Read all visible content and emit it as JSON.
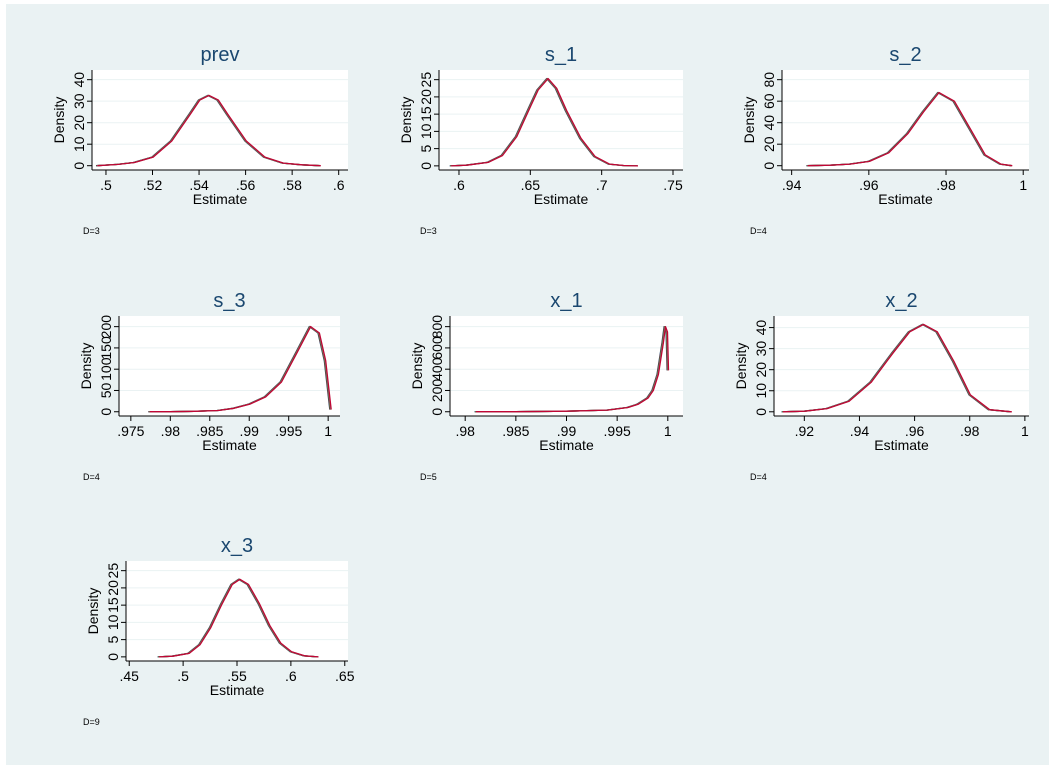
{
  "figure": {
    "background": "#eaf2f3",
    "plot_background": "#ffffff",
    "title_color": "#1a476f",
    "grid_color": "#eaf2f3",
    "axis_color": "#000000"
  },
  "chart_data": [
    {
      "type": "line",
      "title": "prev",
      "xlabel": "Estimate",
      "ylabel": "Density",
      "note": "D=3",
      "xticks": [
        ".5",
        ".52",
        ".54",
        ".56",
        ".58",
        ".6"
      ],
      "xtick_values": [
        0.5,
        0.52,
        0.54,
        0.56,
        0.58,
        0.6
      ],
      "yticks": [
        "0",
        "10",
        "20",
        "30",
        "40"
      ],
      "ytick_values": [
        0,
        10,
        20,
        30,
        40
      ],
      "xlim": [
        0.494,
        0.604
      ],
      "ylim": [
        -2.0,
        44.5
      ],
      "grid": true,
      "legend": "none",
      "colors": [
        "#1a476f",
        "#90353b",
        "#55752f",
        "#6e8e84",
        "#c10534"
      ],
      "x": [
        0.496,
        0.505,
        0.512,
        0.52,
        0.528,
        0.536,
        0.54,
        0.544,
        0.548,
        0.552,
        0.56,
        0.568,
        0.576,
        0.584,
        0.592
      ],
      "y": [
        0,
        0.6,
        1.5,
        4,
        11.5,
        24,
        30.5,
        32.7,
        30.5,
        24,
        11.5,
        4,
        1.2,
        0.4,
        0
      ]
    },
    {
      "type": "line",
      "title": "s_1",
      "xlabel": "Estimate",
      "ylabel": "Density",
      "note": "D=3",
      "xticks": [
        ".6",
        ".65",
        ".7",
        ".75"
      ],
      "xtick_values": [
        0.6,
        0.65,
        0.7,
        0.75
      ],
      "yticks": [
        "0",
        "5",
        "10",
        "15",
        "20",
        "25"
      ],
      "ytick_values": [
        0,
        5,
        10,
        15,
        20,
        25
      ],
      "xlim": [
        0.586,
        0.757
      ],
      "ylim": [
        -1.2,
        27.8
      ],
      "grid": true,
      "legend": "none",
      "colors": [
        "#1a476f",
        "#90353b",
        "#55752f",
        "#6e8e84",
        "#c10534"
      ],
      "x": [
        0.594,
        0.605,
        0.62,
        0.63,
        0.64,
        0.65,
        0.655,
        0.662,
        0.668,
        0.675,
        0.685,
        0.695,
        0.705,
        0.715,
        0.725
      ],
      "y": [
        0,
        0.2,
        1,
        3,
        8.5,
        17.5,
        22,
        25.3,
        22.5,
        16,
        8,
        2.7,
        0.5,
        0.1,
        0
      ]
    },
    {
      "type": "line",
      "title": "s_2",
      "xlabel": "Estimate",
      "ylabel": "Density",
      "note": "D=4",
      "xticks": [
        ".94",
        ".96",
        ".98",
        "1"
      ],
      "xtick_values": [
        0.94,
        0.96,
        0.98,
        1.0
      ],
      "yticks": [
        "0",
        "20",
        "40",
        "60",
        "80"
      ],
      "ytick_values": [
        0,
        20,
        40,
        60,
        80
      ],
      "xlim": [
        0.9375,
        1.0015
      ],
      "ylim": [
        -4.0,
        89.0
      ],
      "grid": true,
      "legend": "none",
      "colors": [
        "#1a476f",
        "#90353b",
        "#55752f",
        "#6e8e84",
        "#c10534"
      ],
      "x": [
        0.944,
        0.95,
        0.955,
        0.96,
        0.965,
        0.97,
        0.974,
        0.978,
        0.982,
        0.986,
        0.99,
        0.994,
        0.997
      ],
      "y": [
        0,
        0.5,
        1.5,
        4,
        12,
        30,
        50,
        68,
        60,
        35,
        10,
        1.5,
        0
      ]
    },
    {
      "type": "line",
      "title": "s_3",
      "xlabel": "Estimate",
      "ylabel": "Density",
      "note": "D=4",
      "xticks": [
        ".975",
        ".98",
        ".985",
        ".99",
        ".995",
        "1"
      ],
      "xtick_values": [
        0.975,
        0.98,
        0.985,
        0.99,
        0.995,
        1.0
      ],
      "yticks": [
        "0",
        "50",
        "100",
        "150",
        "200"
      ],
      "ytick_values": [
        0,
        50,
        100,
        150,
        200
      ],
      "xlim": [
        0.9735,
        1.0015
      ],
      "ylim": [
        -10.0,
        225.0
      ],
      "grid": true,
      "legend": "none",
      "colors": [
        "#1a476f",
        "#90353b",
        "#55752f",
        "#6e8e84",
        "#c10534"
      ],
      "x": [
        0.9773,
        0.98,
        0.983,
        0.986,
        0.988,
        0.99,
        0.992,
        0.994,
        0.996,
        0.9977,
        0.9988,
        0.9996,
        1.0003
      ],
      "y": [
        0,
        0,
        1,
        3,
        8,
        18,
        35,
        70,
        140,
        200,
        185,
        120,
        5
      ]
    },
    {
      "type": "line",
      "title": "x_1",
      "xlabel": "Estimate",
      "ylabel": "Density",
      "note": "D=5",
      "xticks": [
        ".98",
        ".985",
        ".99",
        ".995",
        "1"
      ],
      "xtick_values": [
        0.98,
        0.985,
        0.99,
        0.995,
        1.0
      ],
      "yticks": [
        "0",
        "200",
        "400",
        "600",
        "800"
      ],
      "ytick_values": [
        0,
        200,
        400,
        600,
        800
      ],
      "xlim": [
        0.9785,
        1.0015
      ],
      "ylim": [
        -40.0,
        900.0
      ],
      "grid": true,
      "legend": "none",
      "colors": [
        "#1a476f",
        "#90353b",
        "#55752f",
        "#6e8e84",
        "#c10534"
      ],
      "x": [
        0.981,
        0.985,
        0.99,
        0.994,
        0.996,
        0.997,
        0.998,
        0.9985,
        0.999,
        0.9995,
        0.9997,
        0.9999,
        1.0
      ],
      "y": [
        0,
        0,
        5,
        15,
        40,
        70,
        130,
        200,
        350,
        650,
        800,
        750,
        390
      ]
    },
    {
      "type": "line",
      "title": "x_2",
      "xlabel": "Estimate",
      "ylabel": "Density",
      "note": "D=4",
      "xticks": [
        ".92",
        ".94",
        ".96",
        ".98",
        "1"
      ],
      "xtick_values": [
        0.92,
        0.94,
        0.96,
        0.98,
        1.0
      ],
      "yticks": [
        "0",
        "10",
        "20",
        "30",
        "40"
      ],
      "ytick_values": [
        0,
        10,
        20,
        30,
        40
      ],
      "xlim": [
        0.909,
        1.0015
      ],
      "ylim": [
        -2.0,
        45.5
      ],
      "grid": true,
      "legend": "none",
      "colors": [
        "#1a476f",
        "#90353b",
        "#55752f",
        "#6e8e84",
        "#c10534"
      ],
      "x": [
        0.912,
        0.92,
        0.928,
        0.936,
        0.944,
        0.952,
        0.958,
        0.963,
        0.968,
        0.974,
        0.98,
        0.987,
        0.995
      ],
      "y": [
        0,
        0.3,
        1.5,
        5,
        14,
        28,
        38,
        41.5,
        38,
        24,
        8,
        1,
        0
      ]
    },
    {
      "type": "line",
      "title": "x_3",
      "xlabel": "Estimate",
      "ylabel": "Density",
      "note": "D=9",
      "xticks": [
        ".45",
        ".5",
        ".55",
        ".6",
        ".65"
      ],
      "xtick_values": [
        0.45,
        0.5,
        0.55,
        0.6,
        0.65
      ],
      "yticks": [
        "0",
        "5",
        "10",
        "15",
        "20",
        "25"
      ],
      "ytick_values": [
        0,
        5,
        10,
        15,
        20,
        25
      ],
      "xlim": [
        0.447,
        0.653
      ],
      "ylim": [
        -1.2,
        27.8
      ],
      "grid": true,
      "legend": "none",
      "colors": [
        "#1a476f",
        "#90353b",
        "#55752f",
        "#6e8e84",
        "#c10534"
      ],
      "x": [
        0.477,
        0.49,
        0.505,
        0.515,
        0.525,
        0.535,
        0.545,
        0.552,
        0.56,
        0.57,
        0.58,
        0.59,
        0.6,
        0.612,
        0.625
      ],
      "y": [
        0,
        0.2,
        1,
        3.5,
        8.5,
        15,
        21,
        22.5,
        21,
        15.5,
        9,
        4,
        1.5,
        0.3,
        0
      ]
    }
  ]
}
